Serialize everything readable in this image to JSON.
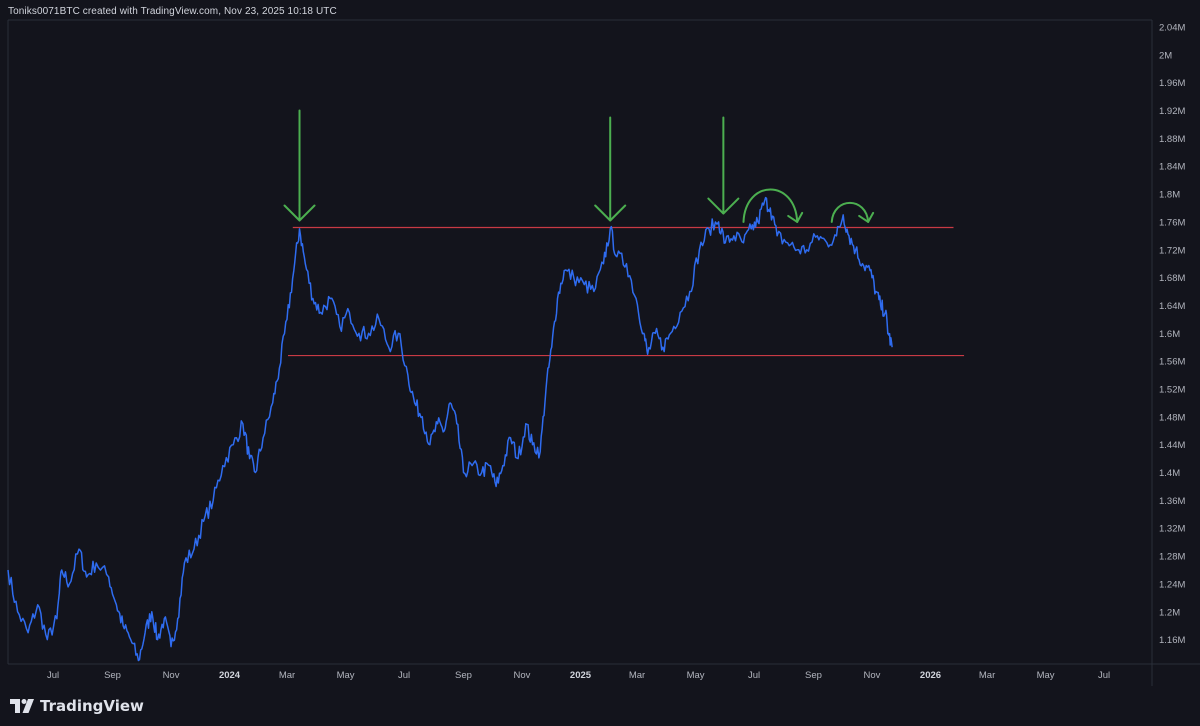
{
  "header": {
    "credit": "Toniks0071BTC created with TradingView.com, Nov 23, 2025 10:18 UTC"
  },
  "footer": {
    "brand": "TradingView",
    "logo_icon": "tradingview-logo-icon"
  },
  "colors": {
    "background": "#13141c",
    "price_line": "#2f6cf0",
    "level_line": "#c83a44",
    "arrow": "#4caf50",
    "axis_text": "#b2b5be"
  },
  "chart_data": {
    "type": "line",
    "title": "",
    "xlabel": "",
    "ylabel": "",
    "ylim": [
      1.125,
      2.05
    ],
    "y_unit": "M",
    "y_ticks": [
      "2.04M",
      "2M",
      "1.96M",
      "1.92M",
      "1.88M",
      "1.84M",
      "1.8M",
      "1.76M",
      "1.72M",
      "1.68M",
      "1.64M",
      "1.6M",
      "1.56M",
      "1.52M",
      "1.48M",
      "1.44M",
      "1.4M",
      "1.36M",
      "1.32M",
      "1.28M",
      "1.24M",
      "1.2M",
      "1.16M"
    ],
    "x_ticks": [
      {
        "label": "Jul",
        "bold": false
      },
      {
        "label": "Sep",
        "bold": false
      },
      {
        "label": "Nov",
        "bold": false
      },
      {
        "label": "2024",
        "bold": true
      },
      {
        "label": "Mar",
        "bold": false
      },
      {
        "label": "May",
        "bold": false
      },
      {
        "label": "Jul",
        "bold": false
      },
      {
        "label": "Sep",
        "bold": false
      },
      {
        "label": "Nov",
        "bold": false
      },
      {
        "label": "2025",
        "bold": true
      },
      {
        "label": "Mar",
        "bold": false
      },
      {
        "label": "May",
        "bold": false
      },
      {
        "label": "Jul",
        "bold": false
      },
      {
        "label": "Sep",
        "bold": false
      },
      {
        "label": "Nov",
        "bold": false
      },
      {
        "label": "2026",
        "bold": true
      },
      {
        "label": "Mar",
        "bold": false
      },
      {
        "label": "May",
        "bold": false
      },
      {
        "label": "Jul",
        "bold": false
      }
    ],
    "x_range": [
      "2023-05-15",
      "2026-08-20"
    ],
    "series": [
      {
        "points": [
          [
            "2023-05-15",
            1.26
          ],
          [
            "2023-05-25",
            1.2
          ],
          [
            "2023-06-05",
            1.17
          ],
          [
            "2023-06-15",
            1.21
          ],
          [
            "2023-06-25",
            1.16
          ],
          [
            "2023-07-05",
            1.19
          ],
          [
            "2023-07-10",
            1.26
          ],
          [
            "2023-07-18",
            1.24
          ],
          [
            "2023-07-28",
            1.29
          ],
          [
            "2023-08-05",
            1.25
          ],
          [
            "2023-08-15",
            1.27
          ],
          [
            "2023-08-28",
            1.25
          ],
          [
            "2023-09-05",
            1.21
          ],
          [
            "2023-09-12",
            1.18
          ],
          [
            "2023-09-20",
            1.16
          ],
          [
            "2023-09-28",
            1.13
          ],
          [
            "2023-10-05",
            1.17
          ],
          [
            "2023-10-12",
            1.2
          ],
          [
            "2023-10-18",
            1.16
          ],
          [
            "2023-10-25",
            1.19
          ],
          [
            "2023-11-01",
            1.15
          ],
          [
            "2023-11-08",
            1.19
          ],
          [
            "2023-11-15",
            1.27
          ],
          [
            "2023-11-25",
            1.29
          ],
          [
            "2023-12-05",
            1.33
          ],
          [
            "2023-12-15",
            1.36
          ],
          [
            "2023-12-25",
            1.41
          ],
          [
            "2024-01-05",
            1.44
          ],
          [
            "2024-01-15",
            1.47
          ],
          [
            "2024-01-22",
            1.42
          ],
          [
            "2024-01-28",
            1.4
          ],
          [
            "2024-02-05",
            1.45
          ],
          [
            "2024-02-15",
            1.5
          ],
          [
            "2024-02-22",
            1.55
          ],
          [
            "2024-03-01",
            1.62
          ],
          [
            "2024-03-08",
            1.69
          ],
          [
            "2024-03-14",
            1.75
          ],
          [
            "2024-03-20",
            1.7
          ],
          [
            "2024-03-28",
            1.65
          ],
          [
            "2024-04-05",
            1.63
          ],
          [
            "2024-04-15",
            1.65
          ],
          [
            "2024-04-25",
            1.61
          ],
          [
            "2024-05-05",
            1.63
          ],
          [
            "2024-05-15",
            1.6
          ],
          [
            "2024-05-25",
            1.6
          ],
          [
            "2024-06-05",
            1.62
          ],
          [
            "2024-06-15",
            1.58
          ],
          [
            "2024-06-25",
            1.6
          ],
          [
            "2024-07-05",
            1.54
          ],
          [
            "2024-07-12",
            1.5
          ],
          [
            "2024-07-20",
            1.48
          ],
          [
            "2024-07-28",
            1.44
          ],
          [
            "2024-08-05",
            1.47
          ],
          [
            "2024-08-12",
            1.46
          ],
          [
            "2024-08-18",
            1.5
          ],
          [
            "2024-08-25",
            1.47
          ],
          [
            "2024-09-01",
            1.4
          ],
          [
            "2024-09-10",
            1.41
          ],
          [
            "2024-09-20",
            1.4
          ],
          [
            "2024-09-28",
            1.41
          ],
          [
            "2024-10-05",
            1.38
          ],
          [
            "2024-10-12",
            1.41
          ],
          [
            "2024-10-20",
            1.45
          ],
          [
            "2024-10-28",
            1.42
          ],
          [
            "2024-11-05",
            1.47
          ],
          [
            "2024-11-12",
            1.44
          ],
          [
            "2024-11-20",
            1.43
          ],
          [
            "2024-11-26",
            1.52
          ],
          [
            "2024-12-02",
            1.58
          ],
          [
            "2024-12-08",
            1.65
          ],
          [
            "2024-12-15",
            1.69
          ],
          [
            "2024-12-25",
            1.68
          ],
          [
            "2025-01-05",
            1.67
          ],
          [
            "2025-01-15",
            1.66
          ],
          [
            "2025-01-25",
            1.7
          ],
          [
            "2025-02-01",
            1.75
          ],
          [
            "2025-02-08",
            1.71
          ],
          [
            "2025-02-18",
            1.7
          ],
          [
            "2025-02-28",
            1.65
          ],
          [
            "2025-03-08",
            1.6
          ],
          [
            "2025-03-12",
            1.57
          ],
          [
            "2025-03-20",
            1.6
          ],
          [
            "2025-03-28",
            1.58
          ],
          [
            "2025-04-05",
            1.6
          ],
          [
            "2025-04-15",
            1.63
          ],
          [
            "2025-04-25",
            1.66
          ],
          [
            "2025-05-05",
            1.72
          ],
          [
            "2025-05-15",
            1.75
          ],
          [
            "2025-05-25",
            1.76
          ],
          [
            "2025-06-01",
            1.73
          ],
          [
            "2025-06-10",
            1.74
          ],
          [
            "2025-06-20",
            1.73
          ],
          [
            "2025-06-28",
            1.75
          ],
          [
            "2025-07-05",
            1.76
          ],
          [
            "2025-07-12",
            1.79
          ],
          [
            "2025-07-18",
            1.78
          ],
          [
            "2025-07-25",
            1.74
          ],
          [
            "2025-08-05",
            1.73
          ],
          [
            "2025-08-15",
            1.72
          ],
          [
            "2025-08-25",
            1.72
          ],
          [
            "2025-09-05",
            1.74
          ],
          [
            "2025-09-15",
            1.73
          ],
          [
            "2025-09-25",
            1.74
          ],
          [
            "2025-10-02",
            1.77
          ],
          [
            "2025-10-08",
            1.74
          ],
          [
            "2025-10-15",
            1.72
          ],
          [
            "2025-10-22",
            1.7
          ],
          [
            "2025-10-30",
            1.69
          ],
          [
            "2025-11-05",
            1.66
          ],
          [
            "2025-11-10",
            1.64
          ],
          [
            "2025-11-15",
            1.63
          ],
          [
            "2025-11-18",
            1.6
          ],
          [
            "2025-11-22",
            1.58
          ]
        ]
      }
    ],
    "horizontal_lines": [
      {
        "y": 1.752,
        "x_start": "2024-03-07",
        "x_end": "2026-01-25"
      },
      {
        "y": 1.568,
        "x_start": "2024-03-02",
        "x_end": "2026-02-05"
      }
    ],
    "annotations": [
      {
        "type": "down-arrow",
        "x": "2024-03-14",
        "y_top": 1.92,
        "y_bottom": 1.762
      },
      {
        "type": "down-arrow",
        "x": "2025-02-01",
        "y_top": 1.91,
        "y_bottom": 1.762
      },
      {
        "type": "down-arrow",
        "x": "2025-05-30",
        "y_top": 1.91,
        "y_bottom": 1.772
      },
      {
        "type": "arc-arrow",
        "x_start": "2025-06-20",
        "x_end": "2025-08-15",
        "y_base": 1.76,
        "y_peak": 1.806
      },
      {
        "type": "arc-arrow",
        "x_start": "2025-09-20",
        "x_end": "2025-10-28",
        "y_base": 1.76,
        "y_peak": 1.787
      }
    ]
  }
}
